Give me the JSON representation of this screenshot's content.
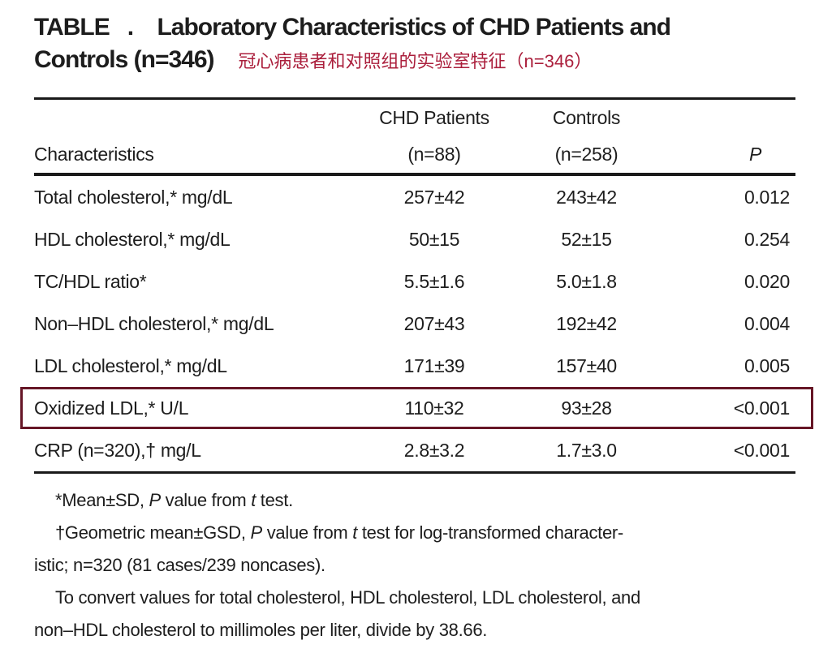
{
  "title": {
    "line1": "TABLE   .    Laboratory Characteristics of CHD Patients and",
    "line2": "Controls (n=346)",
    "annotation_zh": "冠心病患者和对照组的实验室特征（n=346）"
  },
  "colors": {
    "text": "#1d1d1d",
    "rule": "#1a1a1a",
    "annotation_red": "#ab1f3c",
    "highlight_box": "#661626"
  },
  "table": {
    "header": {
      "col1_line2": "Characteristics",
      "col2_line1": "CHD Patients",
      "col2_line2": "(n=88)",
      "col3_line1": "Controls",
      "col3_line2": "(n=258)",
      "col4_line2": "P"
    },
    "rows": [
      {
        "label": "Total cholesterol,* mg/dL",
        "chd": "257±42",
        "controls": "243±42",
        "p": "0.012"
      },
      {
        "label": "HDL cholesterol,* mg/dL",
        "chd": "50±15",
        "controls": "52±15",
        "p": "0.254"
      },
      {
        "label": "TC/HDL ratio*",
        "chd": "5.5±1.6",
        "controls": "5.0±1.8",
        "p": "0.020"
      },
      {
        "label": "Non–HDL cholesterol,* mg/dL",
        "chd": "207±43",
        "controls": "192±42",
        "p": "0.004"
      },
      {
        "label": "LDL cholesterol,* mg/dL",
        "chd": "171±39",
        "controls": "157±40",
        "p": "0.005"
      },
      {
        "label": "Oxidized LDL,* U/L",
        "chd": "110±32",
        "controls": "93±28",
        "p": "<0.001",
        "highlighted": true
      },
      {
        "label": "CRP (n=320),† mg/L",
        "chd": "2.8±3.2",
        "controls": "1.7±3.0",
        "p": "<0.001"
      }
    ]
  },
  "footnotes": {
    "lines": [
      {
        "indent": true,
        "segments": [
          {
            "t": "*Mean±SD, "
          },
          {
            "t": "P",
            "i": true
          },
          {
            "t": " value from "
          },
          {
            "t": "t",
            "i": true
          },
          {
            "t": " test."
          }
        ]
      },
      {
        "indent": true,
        "segments": [
          {
            "t": "†Geometric mean±GSD, "
          },
          {
            "t": "P",
            "i": true
          },
          {
            "t": " value from "
          },
          {
            "t": "t",
            "i": true
          },
          {
            "t": " test for log-transformed character-"
          }
        ]
      },
      {
        "indent": false,
        "segments": [
          {
            "t": "istic; n=320 (81 cases/239 noncases)."
          }
        ]
      },
      {
        "indent": true,
        "segments": [
          {
            "t": "To convert values for total cholesterol, HDL cholesterol, LDL cholesterol, and"
          }
        ]
      },
      {
        "indent": false,
        "segments": [
          {
            "t": "non–HDL cholesterol to millimoles per liter, divide by 38.66."
          }
        ]
      }
    ]
  }
}
